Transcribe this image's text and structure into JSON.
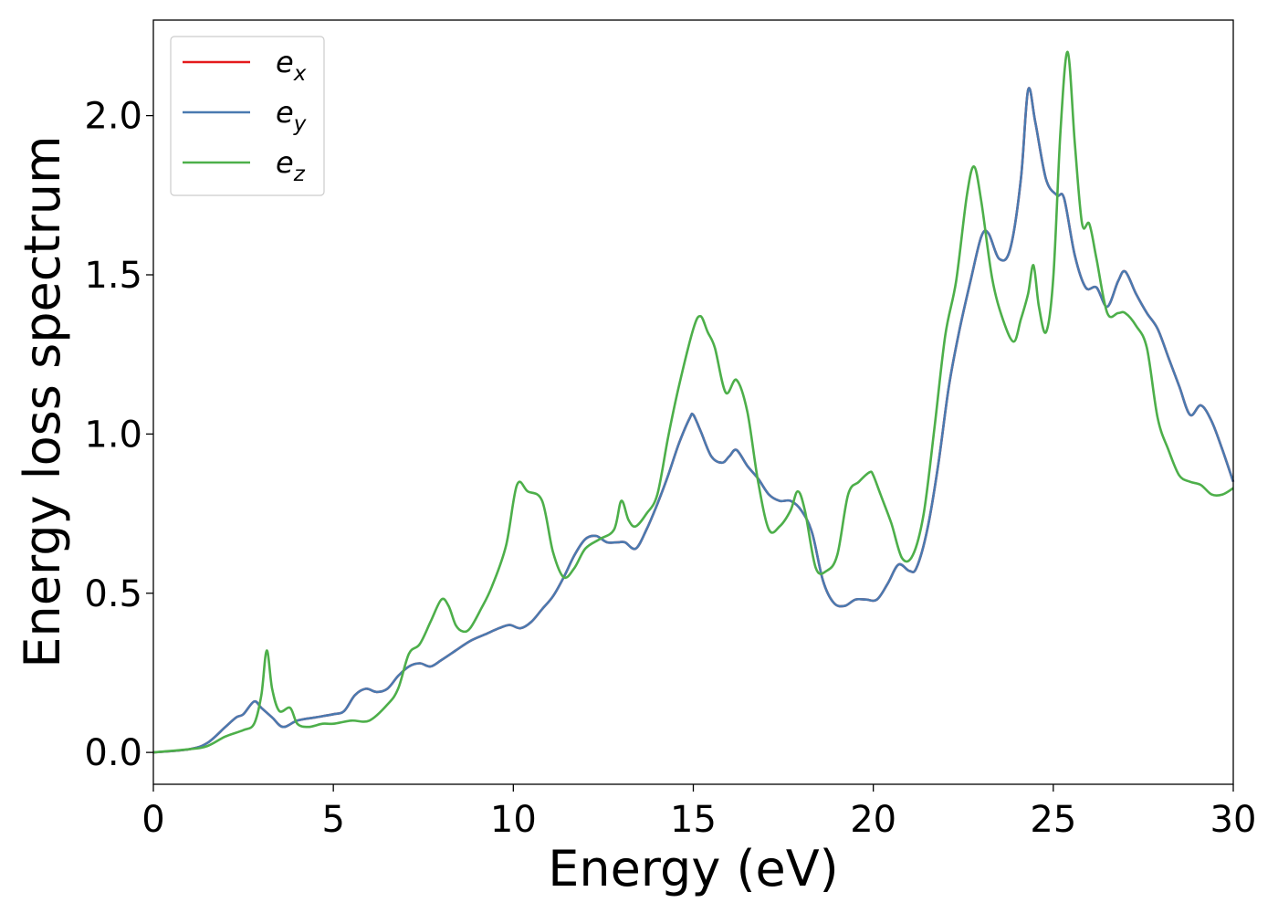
{
  "chart_data": {
    "type": "line",
    "title": "",
    "xlabel": "Energy (eV)",
    "ylabel": "Energy loss spectrum",
    "xlim": [
      0,
      30
    ],
    "ylim": [
      -0.1,
      2.3
    ],
    "xticks": [
      0,
      5,
      10,
      15,
      20,
      25,
      30
    ],
    "xtick_labels": [
      "0",
      "5",
      "10",
      "15",
      "20",
      "25",
      "30"
    ],
    "yticks": [
      0.0,
      0.5,
      1.0,
      1.5,
      2.0
    ],
    "ytick_labels": [
      "0.0",
      "0.5",
      "1.0",
      "1.5",
      "2.0"
    ],
    "grid": false,
    "legend_position": "top-left",
    "series": [
      {
        "name": "e",
        "subscript": "x",
        "color": "#e41a1c",
        "x": [
          0,
          1,
          1.5,
          2,
          2.3,
          2.5,
          2.8,
          3.0,
          3.3,
          3.6,
          4.0,
          4.5,
          5.0,
          5.3,
          5.6,
          5.9,
          6.2,
          6.5,
          6.8,
          7.1,
          7.4,
          7.7,
          8.0,
          8.4,
          8.8,
          9.2,
          9.6,
          9.9,
          10.2,
          10.5,
          10.8,
          11.1,
          11.4,
          11.7,
          12.0,
          12.3,
          12.6,
          12.9,
          13.1,
          13.4,
          13.7,
          14.0,
          14.3,
          14.6,
          14.9,
          15.0,
          15.2,
          15.5,
          15.8,
          16.0,
          16.2,
          16.5,
          16.8,
          17.1,
          17.4,
          17.7,
          18.0,
          18.3,
          18.6,
          18.9,
          19.2,
          19.5,
          19.8,
          20.1,
          20.4,
          20.7,
          21.0,
          21.2,
          21.5,
          21.8,
          22.1,
          22.4,
          22.7,
          23.0,
          23.2,
          23.5,
          23.8,
          24.1,
          24.3,
          24.5,
          24.8,
          25.1,
          25.3,
          25.6,
          25.9,
          26.2,
          26.5,
          26.8,
          27.0,
          27.3,
          27.6,
          27.9,
          28.2,
          28.5,
          28.8,
          29.1,
          29.4,
          29.7,
          30.0
        ],
        "y": [
          0.0,
          0.01,
          0.03,
          0.08,
          0.11,
          0.12,
          0.16,
          0.14,
          0.11,
          0.08,
          0.1,
          0.11,
          0.12,
          0.13,
          0.18,
          0.2,
          0.19,
          0.2,
          0.24,
          0.27,
          0.28,
          0.27,
          0.29,
          0.32,
          0.35,
          0.37,
          0.39,
          0.4,
          0.39,
          0.41,
          0.45,
          0.49,
          0.55,
          0.62,
          0.67,
          0.68,
          0.66,
          0.66,
          0.66,
          0.64,
          0.7,
          0.78,
          0.87,
          0.97,
          1.05,
          1.06,
          1.01,
          0.93,
          0.91,
          0.93,
          0.95,
          0.9,
          0.86,
          0.81,
          0.79,
          0.79,
          0.76,
          0.69,
          0.54,
          0.47,
          0.46,
          0.48,
          0.48,
          0.48,
          0.53,
          0.59,
          0.57,
          0.58,
          0.7,
          0.9,
          1.15,
          1.33,
          1.48,
          1.62,
          1.63,
          1.55,
          1.58,
          1.8,
          2.08,
          1.98,
          1.8,
          1.75,
          1.74,
          1.56,
          1.46,
          1.46,
          1.4,
          1.48,
          1.51,
          1.44,
          1.38,
          1.33,
          1.24,
          1.15,
          1.06,
          1.09,
          1.04,
          0.95,
          0.85
        ]
      },
      {
        "name": "e",
        "subscript": "y",
        "color": "#4a7ab0",
        "x": [
          0,
          1,
          1.5,
          2,
          2.3,
          2.5,
          2.8,
          3.0,
          3.3,
          3.6,
          4.0,
          4.5,
          5.0,
          5.3,
          5.6,
          5.9,
          6.2,
          6.5,
          6.8,
          7.1,
          7.4,
          7.7,
          8.0,
          8.4,
          8.8,
          9.2,
          9.6,
          9.9,
          10.2,
          10.5,
          10.8,
          11.1,
          11.4,
          11.7,
          12.0,
          12.3,
          12.6,
          12.9,
          13.1,
          13.4,
          13.7,
          14.0,
          14.3,
          14.6,
          14.9,
          15.0,
          15.2,
          15.5,
          15.8,
          16.0,
          16.2,
          16.5,
          16.8,
          17.1,
          17.4,
          17.7,
          18.0,
          18.3,
          18.6,
          18.9,
          19.2,
          19.5,
          19.8,
          20.1,
          20.4,
          20.7,
          21.0,
          21.2,
          21.5,
          21.8,
          22.1,
          22.4,
          22.7,
          23.0,
          23.2,
          23.5,
          23.8,
          24.1,
          24.3,
          24.5,
          24.8,
          25.1,
          25.3,
          25.6,
          25.9,
          26.2,
          26.5,
          26.8,
          27.0,
          27.3,
          27.6,
          27.9,
          28.2,
          28.5,
          28.8,
          29.1,
          29.4,
          29.7,
          30.0
        ],
        "y": [
          0.0,
          0.01,
          0.03,
          0.08,
          0.11,
          0.12,
          0.16,
          0.14,
          0.11,
          0.08,
          0.1,
          0.11,
          0.12,
          0.13,
          0.18,
          0.2,
          0.19,
          0.2,
          0.24,
          0.27,
          0.28,
          0.27,
          0.29,
          0.32,
          0.35,
          0.37,
          0.39,
          0.4,
          0.39,
          0.41,
          0.45,
          0.49,
          0.55,
          0.62,
          0.67,
          0.68,
          0.66,
          0.66,
          0.66,
          0.64,
          0.7,
          0.78,
          0.87,
          0.97,
          1.05,
          1.06,
          1.01,
          0.93,
          0.91,
          0.93,
          0.95,
          0.9,
          0.86,
          0.81,
          0.79,
          0.79,
          0.76,
          0.69,
          0.54,
          0.47,
          0.46,
          0.48,
          0.48,
          0.48,
          0.53,
          0.59,
          0.57,
          0.58,
          0.7,
          0.9,
          1.15,
          1.33,
          1.48,
          1.62,
          1.63,
          1.55,
          1.58,
          1.8,
          2.08,
          1.98,
          1.8,
          1.75,
          1.74,
          1.56,
          1.46,
          1.46,
          1.4,
          1.48,
          1.51,
          1.44,
          1.38,
          1.33,
          1.24,
          1.15,
          1.06,
          1.09,
          1.04,
          0.95,
          0.85
        ]
      },
      {
        "name": "e",
        "subscript": "z",
        "color": "#4daf4a",
        "x": [
          0,
          1,
          1.5,
          2,
          2.5,
          2.8,
          3.0,
          3.15,
          3.3,
          3.5,
          3.8,
          4.0,
          4.3,
          4.7,
          5.0,
          5.5,
          6.0,
          6.5,
          6.8,
          7.1,
          7.4,
          7.7,
          8.0,
          8.2,
          8.4,
          8.6,
          8.8,
          9.1,
          9.4,
          9.8,
          10.1,
          10.4,
          10.8,
          11.1,
          11.4,
          11.7,
          12.0,
          12.4,
          12.8,
          13.0,
          13.2,
          13.4,
          13.7,
          14.0,
          14.3,
          14.6,
          15.0,
          15.2,
          15.4,
          15.6,
          15.9,
          16.2,
          16.5,
          16.8,
          17.1,
          17.4,
          17.7,
          17.9,
          18.1,
          18.4,
          18.7,
          19.0,
          19.3,
          19.6,
          19.9,
          20.0,
          20.2,
          20.5,
          20.8,
          21.1,
          21.4,
          21.7,
          22.0,
          22.3,
          22.6,
          22.8,
          23.0,
          23.3,
          23.6,
          23.9,
          24.1,
          24.3,
          24.45,
          24.6,
          24.8,
          25.0,
          25.2,
          25.4,
          25.6,
          25.8,
          26.0,
          26.2,
          26.5,
          26.8,
          27.0,
          27.3,
          27.6,
          27.9,
          28.2,
          28.5,
          28.8,
          29.1,
          29.4,
          29.7,
          30.0
        ],
        "y": [
          0.0,
          0.01,
          0.02,
          0.05,
          0.07,
          0.09,
          0.18,
          0.32,
          0.2,
          0.13,
          0.14,
          0.09,
          0.08,
          0.09,
          0.09,
          0.1,
          0.1,
          0.15,
          0.2,
          0.31,
          0.34,
          0.41,
          0.48,
          0.46,
          0.4,
          0.38,
          0.39,
          0.45,
          0.52,
          0.65,
          0.84,
          0.82,
          0.79,
          0.63,
          0.55,
          0.58,
          0.64,
          0.67,
          0.7,
          0.79,
          0.73,
          0.71,
          0.75,
          0.81,
          0.99,
          1.15,
          1.33,
          1.37,
          1.32,
          1.27,
          1.13,
          1.17,
          1.07,
          0.85,
          0.7,
          0.71,
          0.76,
          0.82,
          0.76,
          0.58,
          0.57,
          0.62,
          0.81,
          0.85,
          0.88,
          0.87,
          0.81,
          0.72,
          0.61,
          0.62,
          0.75,
          1.02,
          1.31,
          1.48,
          1.75,
          1.84,
          1.73,
          1.49,
          1.36,
          1.29,
          1.36,
          1.44,
          1.53,
          1.4,
          1.32,
          1.49,
          1.95,
          2.2,
          1.91,
          1.66,
          1.66,
          1.55,
          1.38,
          1.38,
          1.38,
          1.34,
          1.27,
          1.05,
          0.95,
          0.87,
          0.85,
          0.84,
          0.81,
          0.81,
          0.83
        ]
      }
    ]
  }
}
